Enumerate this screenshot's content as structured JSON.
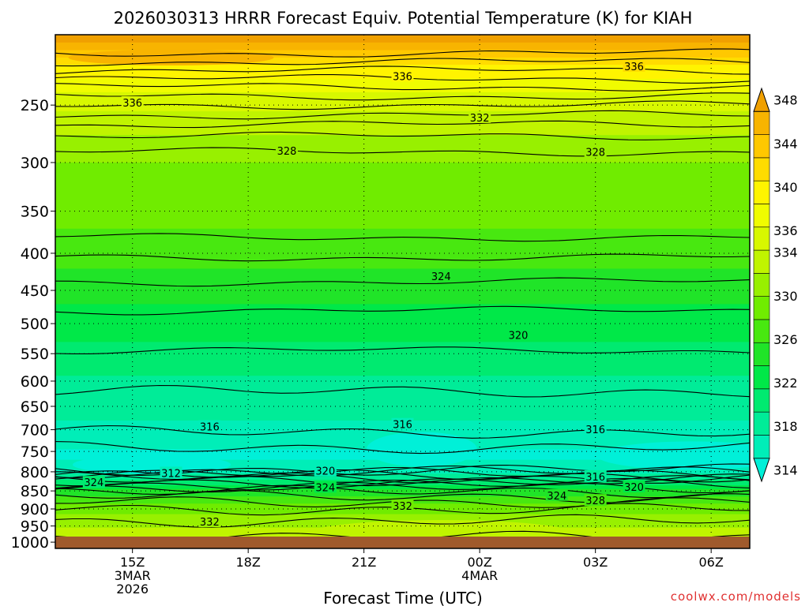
{
  "chart_data": {
    "type": "contour",
    "title": "2026030313 HRRR Forecast Equiv. Potential Temperature (K) for KIAH",
    "xlabel": "Forecast Time (UTC)",
    "ylabel": "",
    "credit": "coolwx.com/models",
    "y_scale": "log",
    "y_inverted": true,
    "ylim": [
      1020,
      200
    ],
    "xlim": [
      "2026-03-03T13:00Z",
      "2026-03-04T07:00Z"
    ],
    "x_ticks": [
      {
        "time": "2026-03-03T15:00Z",
        "lines": [
          "15Z",
          "3MAR",
          "2026"
        ]
      },
      {
        "time": "2026-03-03T18:00Z",
        "lines": [
          "18Z"
        ]
      },
      {
        "time": "2026-03-03T21:00Z",
        "lines": [
          "21Z"
        ]
      },
      {
        "time": "2026-03-04T00:00Z",
        "lines": [
          "00Z",
          "4MAR"
        ]
      },
      {
        "time": "2026-03-04T03:00Z",
        "lines": [
          "03Z"
        ]
      },
      {
        "time": "2026-03-04T06:00Z",
        "lines": [
          "06Z"
        ]
      }
    ],
    "y_ticks": [
      {
        "value": 250,
        "label": "250"
      },
      {
        "value": 300,
        "label": "300"
      },
      {
        "value": 350,
        "label": "350"
      },
      {
        "value": 400,
        "label": "400"
      },
      {
        "value": 450,
        "label": "450"
      },
      {
        "value": 500,
        "label": "500"
      },
      {
        "value": 550,
        "label": "550"
      },
      {
        "value": 600,
        "label": "600"
      },
      {
        "value": 650,
        "label": "650"
      },
      {
        "value": 700,
        "label": "700"
      },
      {
        "value": 750,
        "label": "750"
      },
      {
        "value": 800,
        "label": "800"
      },
      {
        "value": 850,
        "label": "850"
      },
      {
        "value": 900,
        "label": "900"
      },
      {
        "value": 950,
        "label": "950"
      },
      {
        "value": 1000,
        "label": "1000"
      }
    ],
    "grid": true,
    "colorbar": {
      "levels": [
        314,
        316,
        318,
        320,
        322,
        324,
        326,
        328,
        330,
        332,
        334,
        336,
        338,
        340,
        342,
        344,
        346,
        348
      ],
      "labels": [
        "314",
        "318",
        "322",
        "326",
        "330",
        "334",
        "336",
        "340",
        "344",
        "348"
      ],
      "label_values": [
        314,
        318,
        322,
        326,
        330,
        334,
        336,
        340,
        344,
        348
      ],
      "colors": [
        "#00f0d8",
        "#00eeb8",
        "#00ec98",
        "#00ea70",
        "#00e848",
        "#20e428",
        "#48e810",
        "#70ec00",
        "#98f000",
        "#c0f400",
        "#d8f800",
        "#f0fc00",
        "#fff400",
        "#ffdc00",
        "#ffc800",
        "#f8b400",
        "#f0a000"
      ],
      "placement": "right"
    },
    "ground_color": "#a05a2c",
    "contour_labels": [
      {
        "text": "336",
        "time": "2026-03-03T15:00Z",
        "p": 248
      },
      {
        "text": "336",
        "time": "2026-03-03T22:00Z",
        "p": 228
      },
      {
        "text": "336",
        "time": "2026-03-04T04:00Z",
        "p": 221
      },
      {
        "text": "332",
        "time": "2026-03-04T00:00Z",
        "p": 260
      },
      {
        "text": "328",
        "time": "2026-03-03T19:00Z",
        "p": 289
      },
      {
        "text": "328",
        "time": "2026-03-04T03:00Z",
        "p": 290
      },
      {
        "text": "324",
        "time": "2026-03-03T23:00Z",
        "p": 430
      },
      {
        "text": "320",
        "time": "2026-03-04T01:00Z",
        "p": 518
      },
      {
        "text": "316",
        "time": "2026-03-03T17:00Z",
        "p": 693
      },
      {
        "text": "316",
        "time": "2026-03-03T22:00Z",
        "p": 688
      },
      {
        "text": "316",
        "time": "2026-03-04T03:00Z",
        "p": 699
      },
      {
        "text": "316",
        "time": "2026-03-04T03:00Z",
        "p": 812
      },
      {
        "text": "312",
        "time": "2026-03-03T16:00Z",
        "p": 803
      },
      {
        "text": "324",
        "time": "2026-03-03T14:00Z",
        "p": 827
      },
      {
        "text": "320",
        "time": "2026-03-03T20:00Z",
        "p": 797
      },
      {
        "text": "324",
        "time": "2026-03-03T20:00Z",
        "p": 840
      },
      {
        "text": "320",
        "time": "2026-03-04T04:00Z",
        "p": 839
      },
      {
        "text": "324",
        "time": "2026-03-04T02:00Z",
        "p": 862
      },
      {
        "text": "328",
        "time": "2026-03-04T03:00Z",
        "p": 876
      },
      {
        "text": "332",
        "time": "2026-03-03T22:00Z",
        "p": 891
      },
      {
        "text": "332",
        "time": "2026-03-03T17:00Z",
        "p": 937
      }
    ]
  }
}
